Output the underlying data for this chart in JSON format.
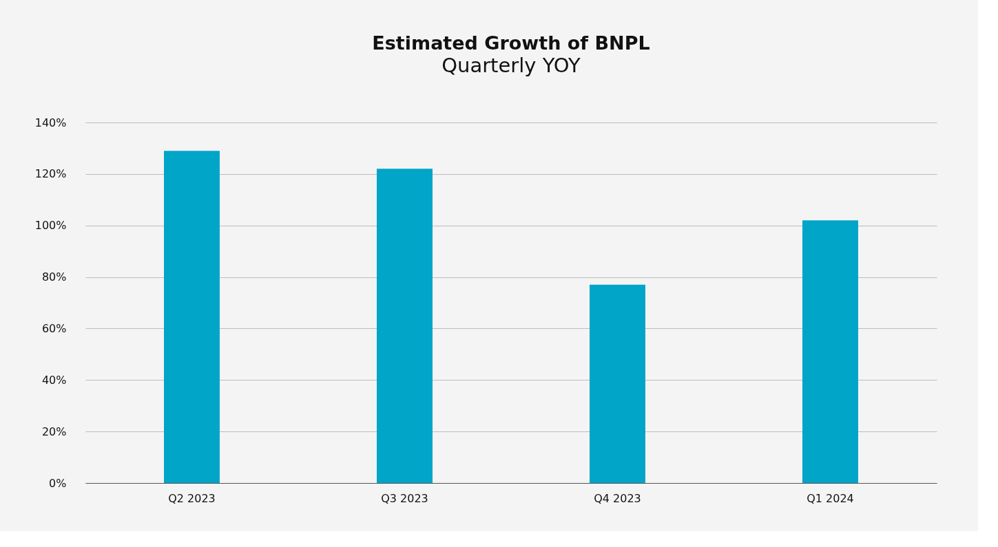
{
  "chart_data": {
    "type": "bar",
    "title": "Estimated Growth of BNPL",
    "subtitle": "Quarterly YOY",
    "categories": [
      "Q2 2023",
      "Q3 2023",
      "Q4 2023",
      "Q1 2024"
    ],
    "values": [
      129,
      122,
      77,
      102
    ],
    "color": "#00a5c8",
    "ylim": [
      0,
      140
    ],
    "yticks": [
      {
        "value": 0,
        "label": "0%"
      },
      {
        "value": 20,
        "label": "20%"
      },
      {
        "value": 40,
        "label": "40%"
      },
      {
        "value": 60,
        "label": "60%"
      },
      {
        "value": 80,
        "label": "80%"
      },
      {
        "value": 100,
        "label": "100%"
      },
      {
        "value": 120,
        "label": "120%"
      },
      {
        "value": 140,
        "label": "140%"
      }
    ],
    "grid": "y",
    "legend": false
  }
}
